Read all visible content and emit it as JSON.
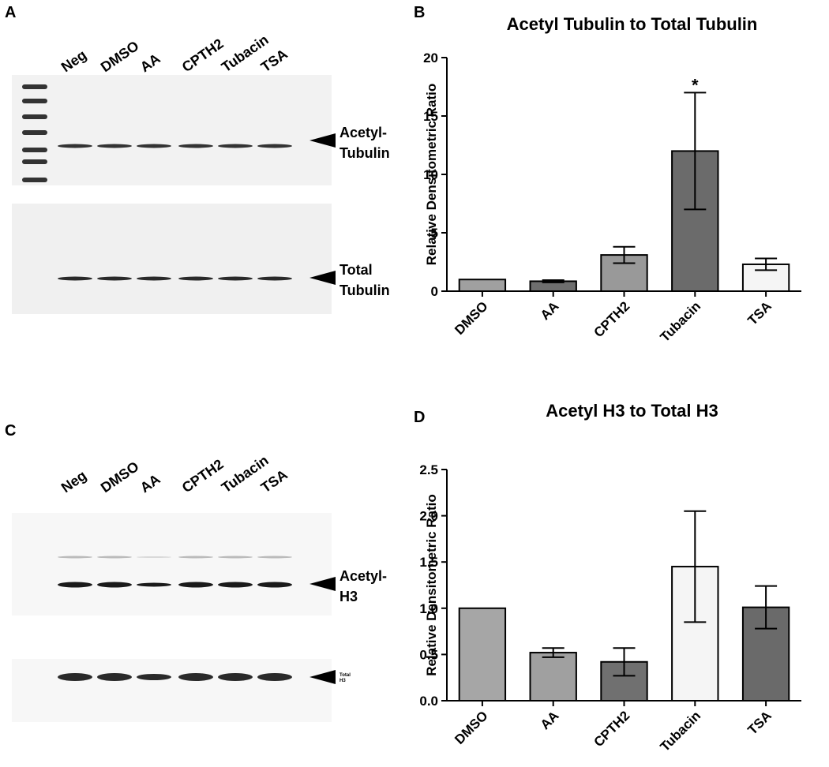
{
  "figure": {
    "panel_labels": [
      "A",
      "B",
      "C",
      "D"
    ]
  },
  "blots": [
    {
      "lanes": [
        "Neg",
        "DMSO",
        "AA",
        "CPTH2",
        "Tubacin",
        "TSA"
      ],
      "markers": [
        [
          "Acetyl-",
          "Tubulin"
        ],
        [
          "Total",
          "Tubulin"
        ]
      ]
    },
    {
      "lanes": [
        "Neg",
        "DMSO",
        "AA",
        "CPTH2",
        "Tubacin",
        "TSA"
      ],
      "markers": [
        [
          "Acetyl-",
          "H3"
        ],
        [
          "Total",
          "H3"
        ]
      ]
    }
  ],
  "chart_data": [
    {
      "type": "bar",
      "title": "Acetyl Tubulin to Total Tubulin",
      "ylabel": "Relative Densitometric Ratio",
      "categories": [
        "DMSO",
        "AA",
        "CPTH2",
        "Tubacin",
        "TSA"
      ],
      "values": [
        1.0,
        0.85,
        3.1,
        12.0,
        2.3
      ],
      "errors": [
        null,
        0.1,
        0.7,
        5.0,
        0.5
      ],
      "value_annotations": [
        null,
        null,
        null,
        "*",
        null
      ],
      "colors": [
        "#a0a0a0",
        "#6e6e6e",
        "#999999",
        "#6b6b6b",
        "#f5f5f5"
      ],
      "ylim": [
        0,
        20
      ],
      "yticks": [
        0,
        5,
        10,
        15,
        20
      ]
    },
    {
      "type": "bar",
      "title": "Acetyl H3 to Total H3",
      "ylabel": "Relative Densitometric Ratio",
      "categories": [
        "DMSO",
        "AA",
        "CPTH2",
        "Tubacin",
        "TSA"
      ],
      "values": [
        1.0,
        0.52,
        0.42,
        1.45,
        1.01
      ],
      "errors": [
        null,
        0.05,
        0.15,
        0.6,
        0.23
      ],
      "colors": [
        "#a6a6a6",
        "#a0a0a0",
        "#707070",
        "#f5f5f5",
        "#6a6a6a"
      ],
      "ylim": [
        0,
        2.5
      ],
      "yticks": [
        {
          "value": 0,
          "label": "0.0"
        },
        {
          "value": 0.5,
          "label": "0.5"
        },
        {
          "value": 1,
          "label": "1.0"
        },
        {
          "value": 1.5,
          "label": "1.5"
        },
        {
          "value": 2,
          "label": "2.0"
        },
        {
          "value": 2.5,
          "label": "2.5"
        }
      ]
    }
  ]
}
